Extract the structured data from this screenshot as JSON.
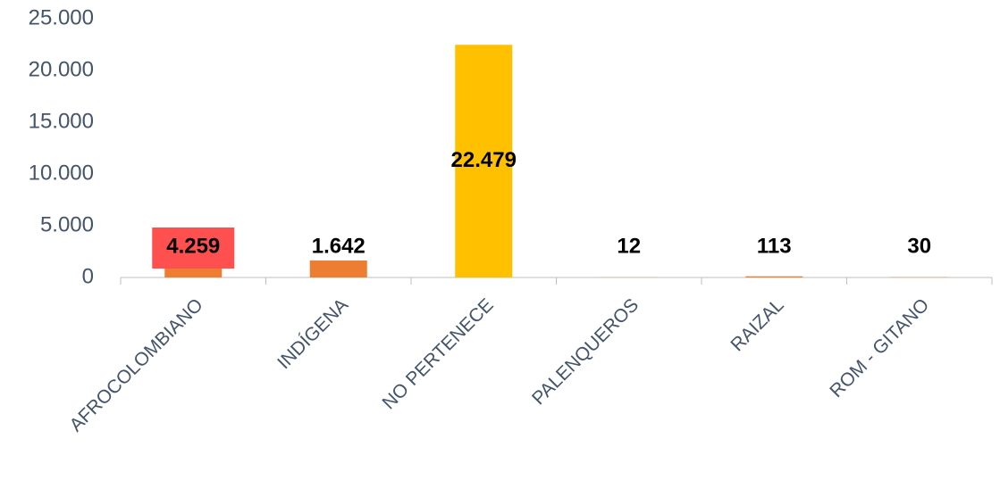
{
  "chart_data": {
    "type": "bar",
    "categories": [
      "AFROCOLOMBIANO",
      "INDÍGENA",
      "NO PERTENECE",
      "PALENQUEROS",
      "RAIZAL",
      "ROM - GITANO"
    ],
    "values": [
      4259,
      1642,
      22479,
      12,
      113,
      30
    ],
    "value_labels": [
      "4.259",
      "1.642",
      "22.479",
      "12",
      "113",
      "30"
    ],
    "colors": [
      "#ed7d31",
      "#ed7d31",
      "#ffc000",
      "#ed7d31",
      "#ed7d31",
      "#ed7d31"
    ],
    "label_backgrounds": [
      "#ff5050",
      null,
      null,
      null,
      null,
      null
    ],
    "ylim": [
      0,
      25000
    ],
    "yticks": [
      0,
      {
        "value": 5000,
        "label": "5.000"
      },
      {
        "value": 10000,
        "label": "10.000"
      },
      {
        "value": 15000,
        "label": "15.000"
      },
      {
        "value": 20000,
        "label": "20.000"
      },
      {
        "value": 25000,
        "label": "25.000"
      }
    ],
    "grid": false
  }
}
